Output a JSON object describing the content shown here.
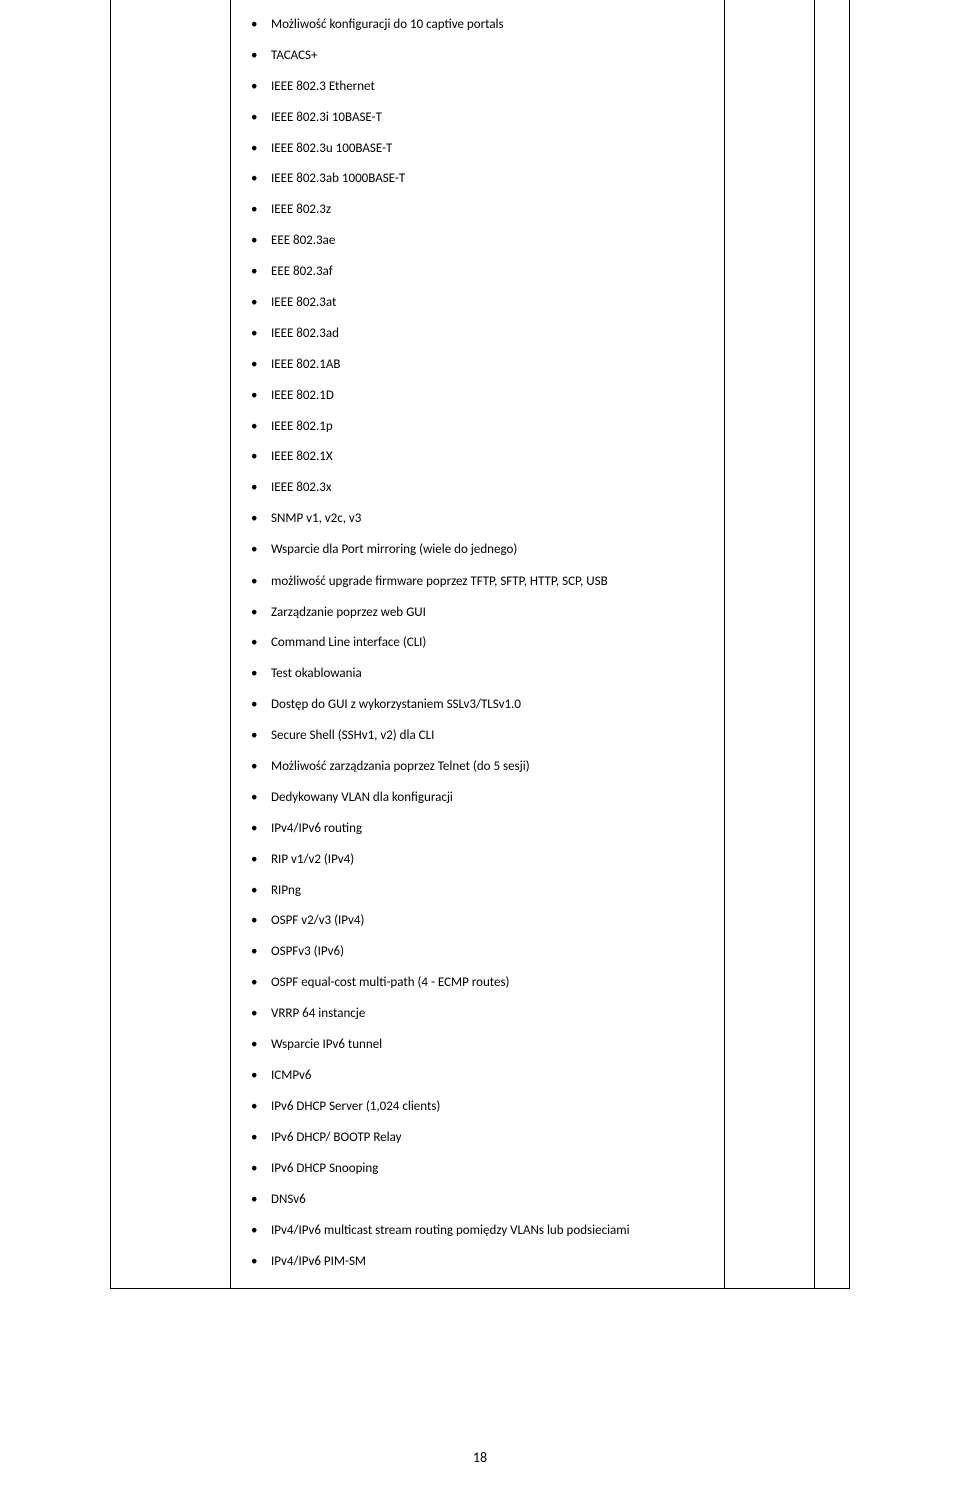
{
  "specs": {
    "items": [
      {
        "text": "Możliwość konfiguracji do 10 captive portals"
      },
      {
        "text": "TACACS+"
      },
      {
        "text": "IEEE 802.3 Ethernet"
      },
      {
        "text": "IEEE 802.3i 10BASE-T"
      },
      {
        "text": "IEEE 802.3u 100BASE-T"
      },
      {
        "text": "IEEE 802.3ab 1000BASE-T"
      },
      {
        "text": "IEEE 802.3z"
      },
      {
        "text": "EEE 802.3ae"
      },
      {
        "text": "EEE 802.3af"
      },
      {
        "text": "IEEE 802.3at"
      },
      {
        "text": "IEEE 802.3ad"
      },
      {
        "text": "IEEE 802.1AB"
      },
      {
        "text": "IEEE 802.1D"
      },
      {
        "text": "IEEE 802.1p"
      },
      {
        "text": "IEEE 802.1X"
      },
      {
        "text": "IEEE 802.3x"
      },
      {
        "text": "SNMP v1, v2c, v3"
      },
      {
        "text": "Wsparcie dla Port mirroring (wiele do jednego)"
      },
      {
        "text": "możliwość upgrade firmware poprzez TFTP, SFTP, HTTP, SCP, USB",
        "multi": true
      },
      {
        "text": "Zarządzanie poprzez web GUI"
      },
      {
        "text": "Command Line interface (CLI)"
      },
      {
        "text": "Test okablowania"
      },
      {
        "text": "Dostęp do GUI z wykorzystaniem SSLv3/TLSv1.0"
      },
      {
        "text": "Secure Shell (SSHv1, v2) dla CLI"
      },
      {
        "text": "Możliwość zarządzania poprzez Telnet (do 5 sesji)"
      },
      {
        "text": "Dedykowany VLAN dla konfiguracji"
      },
      {
        "text": "IPv4/IPv6 routing"
      },
      {
        "text": "RIP v1/v2 (IPv4)"
      },
      {
        "text": "RIPng"
      },
      {
        "text": "OSPF v2/v3 (IPv4)"
      },
      {
        "text": "OSPFv3 (IPv6)"
      },
      {
        "text": "OSPF equal-cost multi-path (4 - ECMP routes)"
      },
      {
        "text": "VRRP 64 instancje"
      },
      {
        "text": "Wsparcie IPv6 tunnel"
      },
      {
        "text": "ICMPv6"
      },
      {
        "text": "IPv6 DHCP Server (1,024 clients)"
      },
      {
        "text": "IPv6 DHCP/ BOOTP Relay"
      },
      {
        "text": "IPv6 DHCP Snooping"
      },
      {
        "text": "DNSv6"
      },
      {
        "text": "IPv4/IPv6 multicast stream routing pomiędzy VLANs lub podsieciami",
        "multi": true
      },
      {
        "text": "IPv4/IPv6 PIM-SM"
      }
    ]
  },
  "pageNumber": "18"
}
